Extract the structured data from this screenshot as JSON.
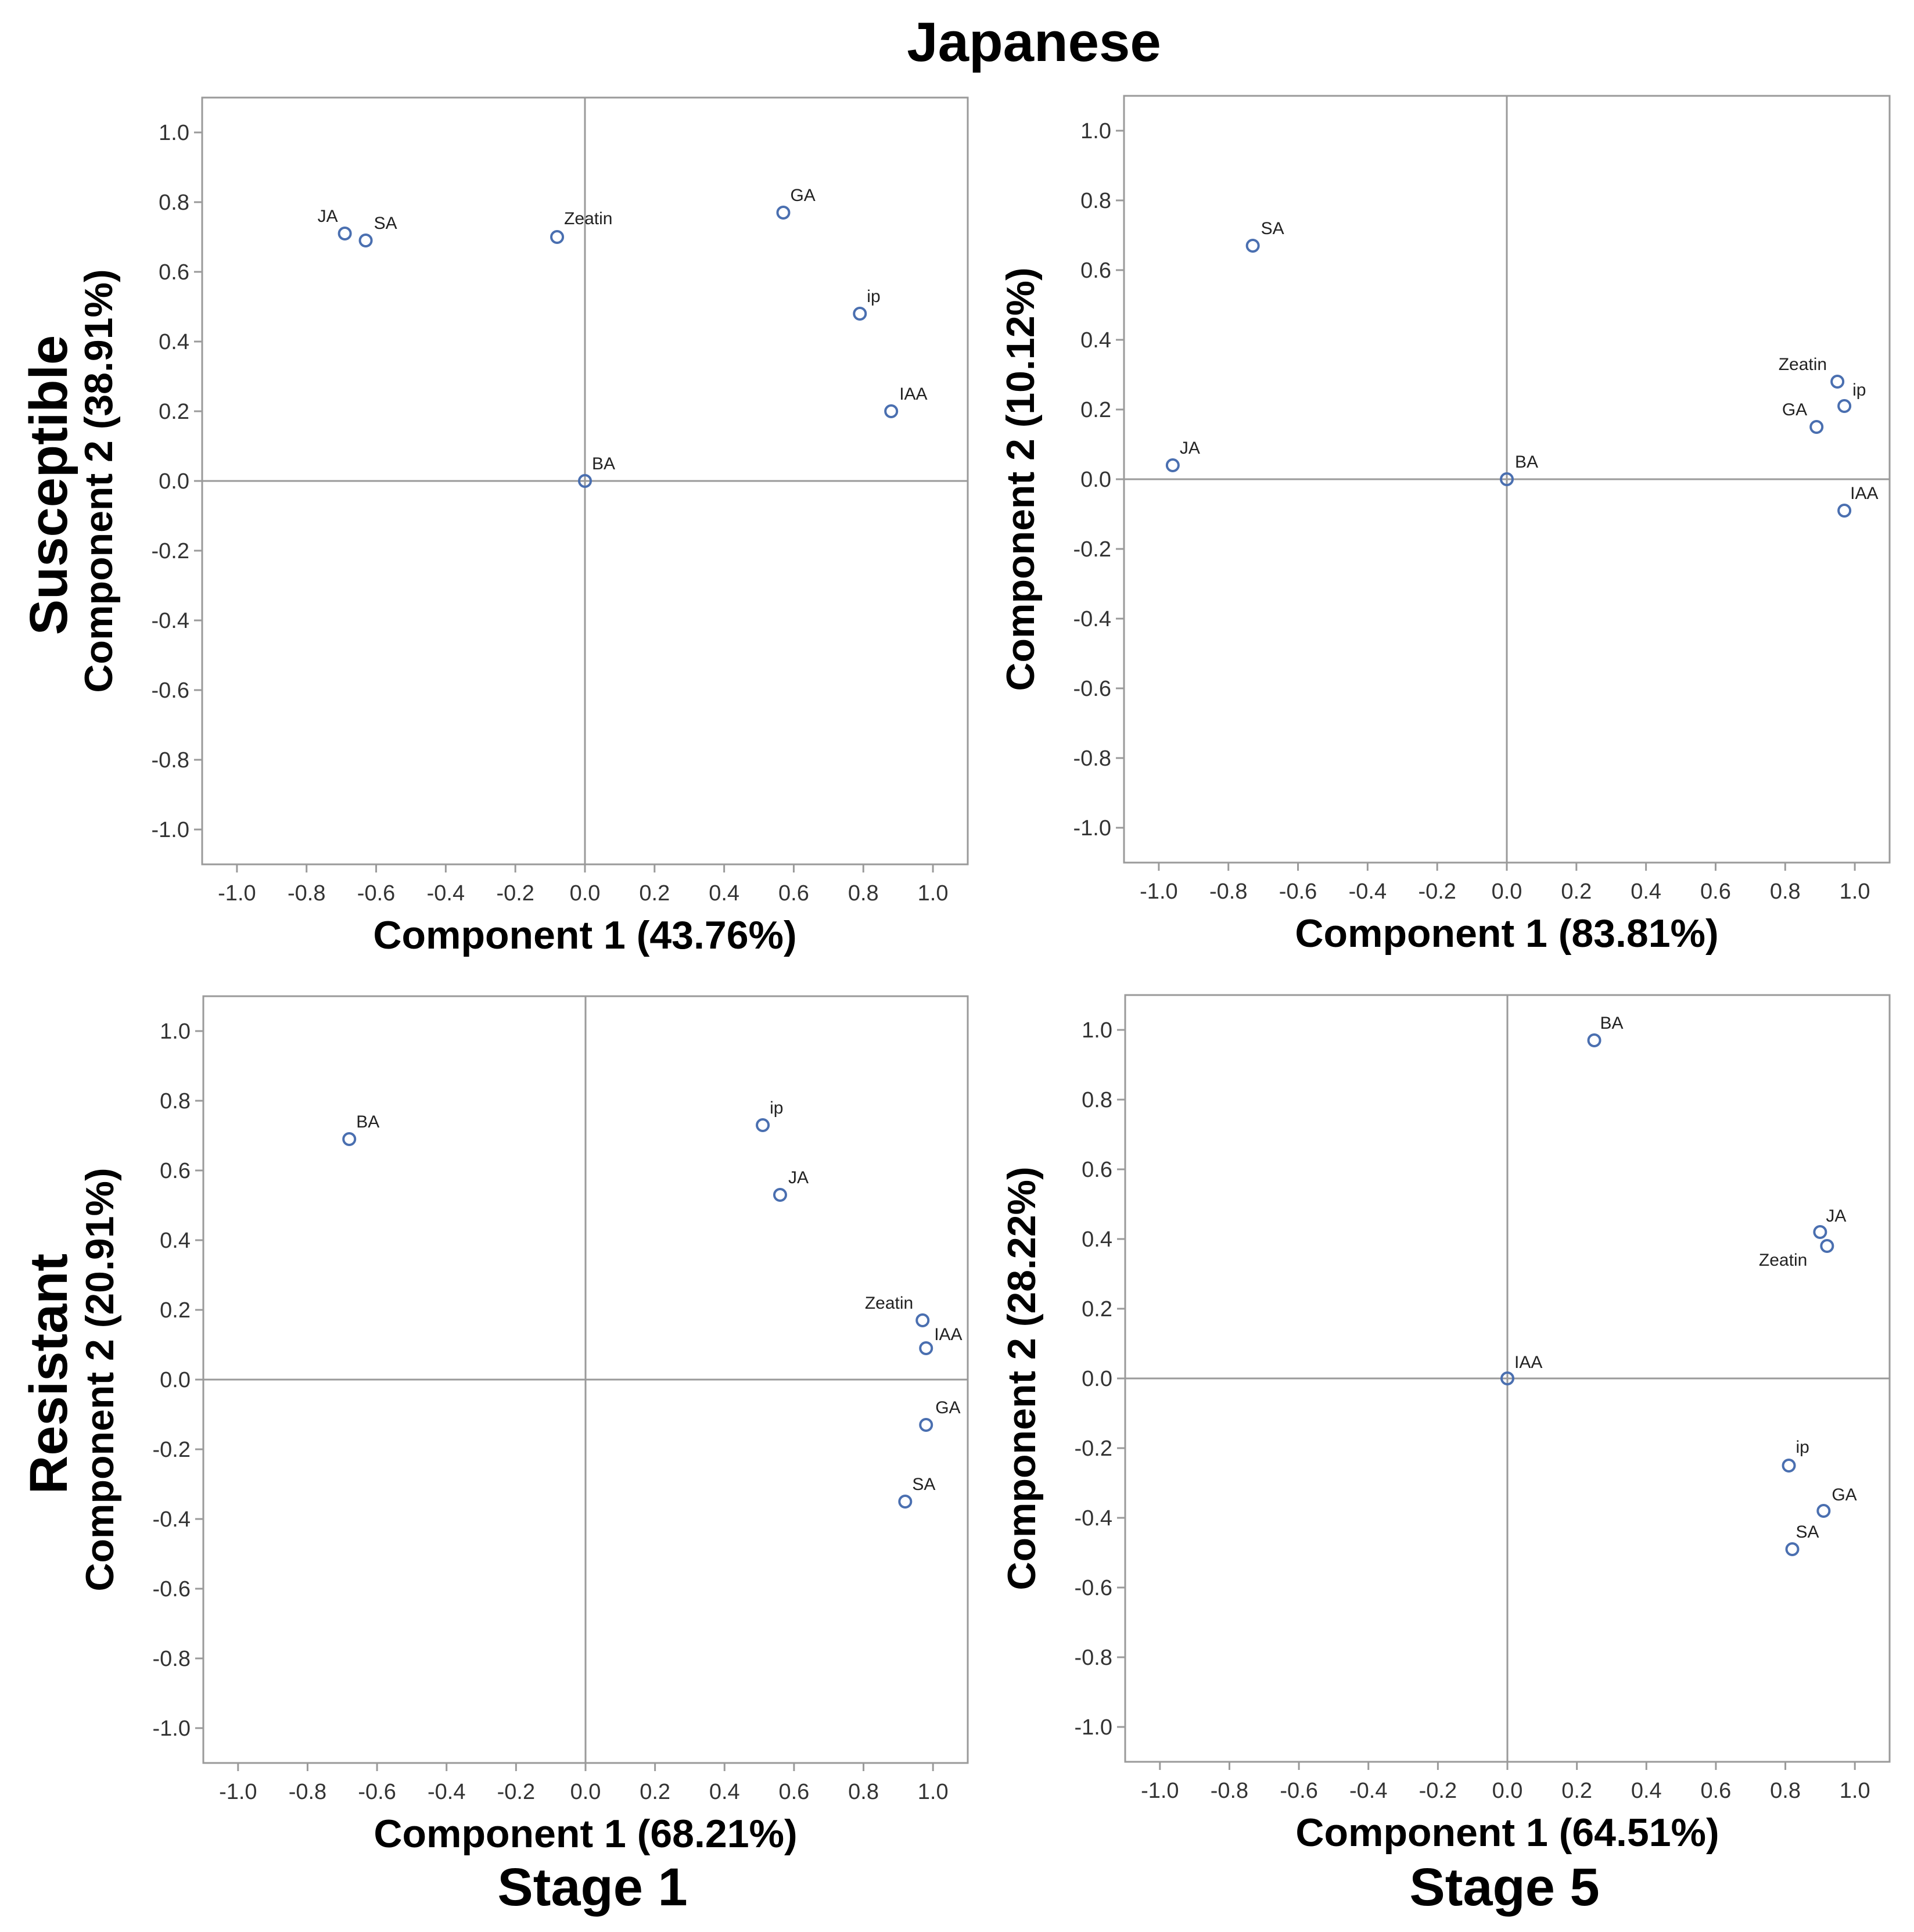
{
  "figure": {
    "title": "Japanese",
    "row_labels": [
      "Susceptible",
      "Resistant"
    ],
    "col_labels": [
      "Stage 1",
      "Stage 5"
    ]
  },
  "chart_data": [
    {
      "type": "scatter",
      "panel": "top-left",
      "xlabel": "Component 1 (43.76%)",
      "ylabel": "Component 2 (38.91%)",
      "xlim": [
        -1.1,
        1.1
      ],
      "ylim": [
        -1.1,
        1.1
      ],
      "xticks": [
        -1.0,
        -0.8,
        -0.6,
        -0.4,
        -0.2,
        0.0,
        0.2,
        0.4,
        0.6,
        0.8,
        1.0
      ],
      "yticks": [
        -1.0,
        -0.8,
        -0.6,
        -0.4,
        -0.2,
        0.0,
        0.2,
        0.4,
        0.6,
        0.8,
        1.0
      ],
      "reference_lines": {
        "x": 0,
        "y": 0
      },
      "points": [
        {
          "label": "JA",
          "x": -0.69,
          "y": 0.71
        },
        {
          "label": "SA",
          "x": -0.63,
          "y": 0.69
        },
        {
          "label": "Zeatin",
          "x": -0.08,
          "y": 0.7
        },
        {
          "label": "GA",
          "x": 0.57,
          "y": 0.77
        },
        {
          "label": "ip",
          "x": 0.79,
          "y": 0.48
        },
        {
          "label": "IAA",
          "x": 0.88,
          "y": 0.2
        },
        {
          "label": "BA",
          "x": 0.0,
          "y": 0.0
        }
      ]
    },
    {
      "type": "scatter",
      "panel": "top-right",
      "xlabel": "Component 1 (83.81%)",
      "ylabel": "Component 2 (10.12%)",
      "xlim": [
        -1.1,
        1.1
      ],
      "ylim": [
        -1.1,
        1.1
      ],
      "xticks": [
        -1.0,
        -0.8,
        -0.6,
        -0.4,
        -0.2,
        0.0,
        0.2,
        0.4,
        0.6,
        0.8,
        1.0
      ],
      "yticks": [
        -1.0,
        -0.8,
        -0.6,
        -0.4,
        -0.2,
        0.0,
        0.2,
        0.4,
        0.6,
        0.8,
        1.0
      ],
      "reference_lines": {
        "x": 0,
        "y": 0
      },
      "points": [
        {
          "label": "SA",
          "x": -0.73,
          "y": 0.67
        },
        {
          "label": "JA",
          "x": -0.96,
          "y": 0.04
        },
        {
          "label": "BA",
          "x": 0.0,
          "y": 0.0
        },
        {
          "label": "Zeatin",
          "x": 0.95,
          "y": 0.28
        },
        {
          "label": "ip",
          "x": 0.97,
          "y": 0.21
        },
        {
          "label": "GA",
          "x": 0.89,
          "y": 0.15
        },
        {
          "label": "IAA",
          "x": 0.97,
          "y": -0.09
        }
      ]
    },
    {
      "type": "scatter",
      "panel": "bottom-left",
      "xlabel": "Component 1 (68.21%)",
      "ylabel": "Component 2 (20.91%)",
      "xlim": [
        -1.1,
        1.1
      ],
      "ylim": [
        -1.1,
        1.1
      ],
      "xticks": [
        -1.0,
        -0.8,
        -0.6,
        -0.4,
        -0.2,
        0.0,
        0.2,
        0.4,
        0.6,
        0.8,
        1.0
      ],
      "yticks": [
        -1.0,
        -0.8,
        -0.6,
        -0.4,
        -0.2,
        0.0,
        0.2,
        0.4,
        0.6,
        0.8,
        1.0
      ],
      "reference_lines": {
        "x": 0,
        "y": 0
      },
      "points": [
        {
          "label": "BA",
          "x": -0.68,
          "y": 0.69
        },
        {
          "label": "ip",
          "x": 0.51,
          "y": 0.73
        },
        {
          "label": "JA",
          "x": 0.56,
          "y": 0.53
        },
        {
          "label": "Zeatin",
          "x": 0.97,
          "y": 0.17
        },
        {
          "label": "IAA",
          "x": 0.98,
          "y": 0.09
        },
        {
          "label": "GA",
          "x": 0.98,
          "y": -0.13
        },
        {
          "label": "SA",
          "x": 0.92,
          "y": -0.35
        }
      ]
    },
    {
      "type": "scatter",
      "panel": "bottom-right",
      "xlabel": "Component 1 (64.51%)",
      "ylabel": "Component 2 (28.22%)",
      "xlim": [
        -1.1,
        1.1
      ],
      "ylim": [
        -1.1,
        1.1
      ],
      "xticks": [
        -1.0,
        -0.8,
        -0.6,
        -0.4,
        -0.2,
        0.0,
        0.2,
        0.4,
        0.6,
        0.8,
        1.0
      ],
      "yticks": [
        -1.0,
        -0.8,
        -0.6,
        -0.4,
        -0.2,
        0.0,
        0.2,
        0.4,
        0.6,
        0.8,
        1.0
      ],
      "reference_lines": {
        "x": 0,
        "y": 0
      },
      "points": [
        {
          "label": "BA",
          "x": 0.25,
          "y": 0.97
        },
        {
          "label": "JA",
          "x": 0.9,
          "y": 0.42
        },
        {
          "label": "Zeatin",
          "x": 0.92,
          "y": 0.38
        },
        {
          "label": "IAA",
          "x": 0.0,
          "y": 0.0
        },
        {
          "label": "ip",
          "x": 0.81,
          "y": -0.25
        },
        {
          "label": "GA",
          "x": 0.91,
          "y": -0.38
        },
        {
          "label": "SA",
          "x": 0.82,
          "y": -0.49
        }
      ]
    }
  ]
}
